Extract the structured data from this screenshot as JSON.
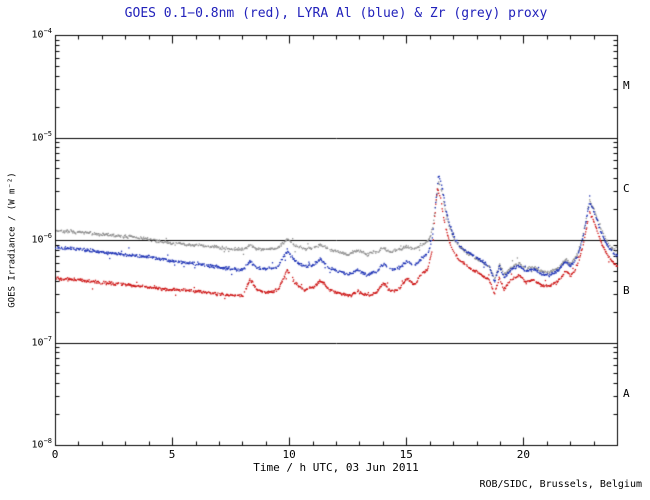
{
  "title": "GOES 0.1−0.8nm (red), LYRA Al (blue) & Zr (grey) proxy",
  "credit": "ROB/SIDC, Brussels, Belgium",
  "chart_data": {
    "type": "scatter",
    "title": "GOES 0.1−0.8nm (red), LYRA Al (blue) & Zr (grey) proxy",
    "xlabel": "Time / h UTC, 03 Jun 2011",
    "ylabel": "GOES Irradiance / (W m⁻²)",
    "x_range": [
      0,
      24
    ],
    "y_log_range_exponents": [
      -8,
      -4
    ],
    "x_major_ticks": [
      0,
      5,
      10,
      15,
      20
    ],
    "x_tick_labels": [
      "0",
      "5",
      "10",
      "15",
      "20"
    ],
    "x_minor_step": 1,
    "y_decade_exponents": [
      -4,
      -5,
      -6,
      -7,
      -8
    ],
    "hline_exponents": [
      -5,
      -6,
      -7
    ],
    "grid": "off",
    "legend": "in-title",
    "flare_classes": [
      {
        "label": "M",
        "between_exp": [
          -5,
          -4
        ]
      },
      {
        "label": "C",
        "between_exp": [
          -6,
          -5
        ]
      },
      {
        "label": "B",
        "between_exp": [
          -7,
          -6
        ]
      },
      {
        "label": "A",
        "between_exp": [
          -8,
          -7
        ]
      }
    ],
    "colors": {
      "title": "#2222bb",
      "axis": "#000000",
      "red": "#cc1111",
      "blue": "#1a2fb4",
      "grey": "#909090"
    },
    "series": [
      {
        "name": "LYRA Zr proxy",
        "color_key": "grey",
        "seed": 7,
        "points": [
          [
            0,
            1.25e-06
          ],
          [
            0.5,
            1.22e-06
          ],
          [
            1,
            1.2e-06
          ],
          [
            1.5,
            1.18e-06
          ],
          [
            2,
            1.15e-06
          ],
          [
            2.5,
            1.12e-06
          ],
          [
            3,
            1.1e-06
          ],
          [
            3.5,
            1.07e-06
          ],
          [
            4,
            1.03e-06
          ],
          [
            4.5,
            9.8e-07
          ],
          [
            5,
            9.4e-07
          ],
          [
            5.5,
            9.2e-07
          ],
          [
            6,
            9e-07
          ],
          [
            6.5,
            8.8e-07
          ],
          [
            7,
            8.6e-07
          ],
          [
            7.5,
            8.3e-07
          ],
          [
            8,
            8.2e-07
          ],
          [
            8.3,
            9e-07
          ],
          [
            8.6,
            8.3e-07
          ],
          [
            9,
            8.2e-07
          ],
          [
            9.5,
            8.5e-07
          ],
          [
            9.9,
            1.05e-06
          ],
          [
            10.2,
            9e-07
          ],
          [
            10.6,
            8.3e-07
          ],
          [
            11,
            8.5e-07
          ],
          [
            11.3,
            9.2e-07
          ],
          [
            11.7,
            8.2e-07
          ],
          [
            12.1,
            7.8e-07
          ],
          [
            12.5,
            7.3e-07
          ],
          [
            12.9,
            8e-07
          ],
          [
            13.3,
            7.3e-07
          ],
          [
            13.7,
            7.8e-07
          ],
          [
            14,
            8.5e-07
          ],
          [
            14.3,
            7.8e-07
          ],
          [
            14.7,
            8.2e-07
          ],
          [
            15,
            8.8e-07
          ],
          [
            15.3,
            8.2e-07
          ],
          [
            15.6,
            9e-07
          ],
          [
            15.9,
            9.8e-07
          ],
          [
            16.1,
            1.3e-06
          ],
          [
            16.25,
            2.4e-06
          ],
          [
            16.35,
            3.8e-06
          ],
          [
            16.5,
            3e-06
          ],
          [
            16.65,
            1.9e-06
          ],
          [
            16.8,
            1.4e-06
          ],
          [
            17,
            1.05e-06
          ],
          [
            17.2,
            9e-07
          ],
          [
            17.5,
            7.8e-07
          ],
          [
            17.8,
            7e-07
          ],
          [
            18.2,
            6.2e-07
          ],
          [
            18.5,
            5.6e-07
          ],
          [
            18.75,
            4.3e-07
          ],
          [
            18.95,
            5.8e-07
          ],
          [
            19.15,
            4.7e-07
          ],
          [
            19.5,
            5.6e-07
          ],
          [
            19.8,
            6e-07
          ],
          [
            20.1,
            5.3e-07
          ],
          [
            20.4,
            5.6e-07
          ],
          [
            20.7,
            5.1e-07
          ],
          [
            21.1,
            4.9e-07
          ],
          [
            21.5,
            5.5e-07
          ],
          [
            21.8,
            6.6e-07
          ],
          [
            22,
            5.9e-07
          ],
          [
            22.3,
            7.5e-07
          ],
          [
            22.55,
            1.2e-06
          ],
          [
            22.8,
            2.5e-06
          ],
          [
            23,
            2e-06
          ],
          [
            23.3,
            1.3e-06
          ],
          [
            23.6,
            9.2e-07
          ],
          [
            24,
            7.6e-07
          ]
        ]
      },
      {
        "name": "LYRA Al proxy",
        "color_key": "blue",
        "seed": 13,
        "points": [
          [
            0,
            8.6e-07
          ],
          [
            0.5,
            8.4e-07
          ],
          [
            1,
            8.2e-07
          ],
          [
            1.5,
            8e-07
          ],
          [
            2,
            7.7e-07
          ],
          [
            2.5,
            7.5e-07
          ],
          [
            3,
            7.3e-07
          ],
          [
            3.5,
            7.1e-07
          ],
          [
            4,
            6.9e-07
          ],
          [
            4.5,
            6.6e-07
          ],
          [
            5,
            6.3e-07
          ],
          [
            5.5,
            6.1e-07
          ],
          [
            6,
            5.9e-07
          ],
          [
            6.5,
            5.7e-07
          ],
          [
            7,
            5.5e-07
          ],
          [
            7.5,
            5.3e-07
          ],
          [
            8,
            5.2e-07
          ],
          [
            8.3,
            6.3e-07
          ],
          [
            8.6,
            5.4e-07
          ],
          [
            9,
            5.3e-07
          ],
          [
            9.5,
            5.6e-07
          ],
          [
            9.9,
            8e-07
          ],
          [
            10.2,
            6.4e-07
          ],
          [
            10.6,
            5.6e-07
          ],
          [
            11,
            5.8e-07
          ],
          [
            11.3,
            6.6e-07
          ],
          [
            11.7,
            5.4e-07
          ],
          [
            12.1,
            5e-07
          ],
          [
            12.5,
            4.6e-07
          ],
          [
            12.9,
            5.2e-07
          ],
          [
            13.3,
            4.6e-07
          ],
          [
            13.7,
            5e-07
          ],
          [
            14,
            6e-07
          ],
          [
            14.3,
            5.2e-07
          ],
          [
            14.7,
            5.5e-07
          ],
          [
            15,
            6.3e-07
          ],
          [
            15.3,
            5.7e-07
          ],
          [
            15.6,
            6.6e-07
          ],
          [
            15.9,
            7.4e-07
          ],
          [
            16.1,
            1.1e-06
          ],
          [
            16.25,
            2.6e-06
          ],
          [
            16.35,
            4.3e-06
          ],
          [
            16.5,
            3.4e-06
          ],
          [
            16.65,
            2.1e-06
          ],
          [
            16.8,
            1.5e-06
          ],
          [
            17,
            1.1e-06
          ],
          [
            17.2,
            9.2e-07
          ],
          [
            17.5,
            8e-07
          ],
          [
            17.8,
            7.2e-07
          ],
          [
            18.2,
            6.3e-07
          ],
          [
            18.5,
            5.7e-07
          ],
          [
            18.75,
            4e-07
          ],
          [
            18.95,
            5.6e-07
          ],
          [
            19.15,
            4.4e-07
          ],
          [
            19.5,
            5.3e-07
          ],
          [
            19.8,
            5.7e-07
          ],
          [
            20.1,
            5e-07
          ],
          [
            20.4,
            5.3e-07
          ],
          [
            20.7,
            4.8e-07
          ],
          [
            21.1,
            4.6e-07
          ],
          [
            21.5,
            5.2e-07
          ],
          [
            21.8,
            6.3e-07
          ],
          [
            22,
            5.6e-07
          ],
          [
            22.3,
            7.2e-07
          ],
          [
            22.55,
            1.15e-06
          ],
          [
            22.8,
            2.4e-06
          ],
          [
            23,
            1.9e-06
          ],
          [
            23.3,
            1.2e-06
          ],
          [
            23.6,
            8.6e-07
          ],
          [
            24,
            7e-07
          ]
        ]
      },
      {
        "name": "GOES 0.1−0.8nm",
        "color_key": "red",
        "seed": 29,
        "points": [
          [
            0,
            4.3e-07
          ],
          [
            0.5,
            4.2e-07
          ],
          [
            1,
            4.1e-07
          ],
          [
            1.5,
            4e-07
          ],
          [
            2,
            3.9e-07
          ],
          [
            2.5,
            3.8e-07
          ],
          [
            3,
            3.7e-07
          ],
          [
            3.5,
            3.6e-07
          ],
          [
            4,
            3.5e-07
          ],
          [
            4.5,
            3.4e-07
          ],
          [
            5,
            3.3e-07
          ],
          [
            5.5,
            3.3e-07
          ],
          [
            6,
            3.2e-07
          ],
          [
            6.5,
            3.1e-07
          ],
          [
            7,
            3e-07
          ],
          [
            7.5,
            2.95e-07
          ],
          [
            8,
            2.9e-07
          ],
          [
            8.3,
            4.2e-07
          ],
          [
            8.6,
            3.3e-07
          ],
          [
            9,
            3.1e-07
          ],
          [
            9.5,
            3.3e-07
          ],
          [
            9.9,
            5.2e-07
          ],
          [
            10.2,
            3.9e-07
          ],
          [
            10.6,
            3.3e-07
          ],
          [
            11,
            3.5e-07
          ],
          [
            11.3,
            4.1e-07
          ],
          [
            11.7,
            3.3e-07
          ],
          [
            12.1,
            3.1e-07
          ],
          [
            12.5,
            2.9e-07
          ],
          [
            12.9,
            3.2e-07
          ],
          [
            13.3,
            2.9e-07
          ],
          [
            13.7,
            3.1e-07
          ],
          [
            14,
            3.9e-07
          ],
          [
            14.3,
            3.2e-07
          ],
          [
            14.7,
            3.4e-07
          ],
          [
            15,
            4.3e-07
          ],
          [
            15.3,
            3.7e-07
          ],
          [
            15.6,
            4.6e-07
          ],
          [
            15.9,
            5.3e-07
          ],
          [
            16.1,
            8.5e-07
          ],
          [
            16.2,
            1.8e-06
          ],
          [
            16.3,
            3.3e-06
          ],
          [
            16.45,
            2.5e-06
          ],
          [
            16.6,
            1.5e-06
          ],
          [
            16.8,
            1e-06
          ],
          [
            17,
            7.8e-07
          ],
          [
            17.2,
            6.6e-07
          ],
          [
            17.5,
            5.8e-07
          ],
          [
            17.8,
            5.2e-07
          ],
          [
            18.2,
            4.6e-07
          ],
          [
            18.5,
            4.2e-07
          ],
          [
            18.75,
            3e-07
          ],
          [
            18.95,
            4.4e-07
          ],
          [
            19.15,
            3.3e-07
          ],
          [
            19.5,
            4.3e-07
          ],
          [
            19.8,
            4.6e-07
          ],
          [
            20.1,
            3.9e-07
          ],
          [
            20.4,
            4.2e-07
          ],
          [
            20.7,
            3.7e-07
          ],
          [
            21.1,
            3.6e-07
          ],
          [
            21.5,
            4.1e-07
          ],
          [
            21.8,
            5.1e-07
          ],
          [
            22,
            4.5e-07
          ],
          [
            22.3,
            5.8e-07
          ],
          [
            22.55,
            9.5e-07
          ],
          [
            22.8,
            1.9e-06
          ],
          [
            23,
            1.5e-06
          ],
          [
            23.3,
            9.5e-07
          ],
          [
            23.6,
            7e-07
          ],
          [
            24,
            5.5e-07
          ]
        ]
      }
    ]
  }
}
